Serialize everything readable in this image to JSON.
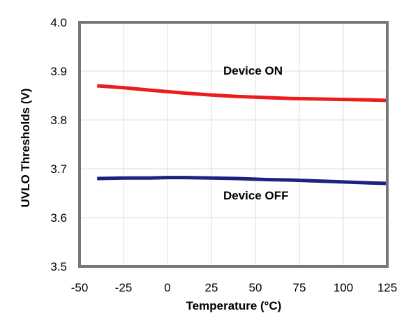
{
  "chart_data": {
    "type": "line",
    "title": "",
    "xlabel": "Temperature (°C)",
    "ylabel": "UVLO Thresholds (V)",
    "xlim": [
      -50,
      125
    ],
    "ylim": [
      3.5,
      4.0
    ],
    "xticks": [
      "-50",
      "-25",
      "0",
      "25",
      "50",
      "75",
      "100",
      "125"
    ],
    "yticks": [
      "4.0",
      "3.9",
      "3.8",
      "3.7",
      "3.6",
      "3.5"
    ],
    "grid": true,
    "series": [
      {
        "name": "Device ON",
        "color": "#ee1c1c",
        "x": [
          -40,
          -25,
          -10,
          0,
          10,
          25,
          40,
          55,
          70,
          85,
          100,
          115,
          125
        ],
        "y": [
          3.87,
          3.866,
          3.861,
          3.858,
          3.855,
          3.851,
          3.848,
          3.846,
          3.844,
          3.843,
          3.842,
          3.841,
          3.84
        ]
      },
      {
        "name": "Device OFF",
        "color": "#1a237e",
        "x": [
          -40,
          -25,
          -10,
          0,
          10,
          25,
          40,
          55,
          70,
          85,
          100,
          115,
          125
        ],
        "y": [
          3.68,
          3.681,
          3.681,
          3.682,
          3.682,
          3.681,
          3.68,
          3.678,
          3.677,
          3.675,
          3.673,
          3.671,
          3.67
        ]
      }
    ]
  }
}
